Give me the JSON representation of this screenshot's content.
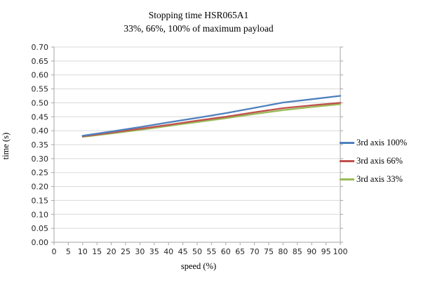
{
  "chart_data": {
    "type": "line",
    "title": "Stopping time HSR065A1",
    "subtitle": "33%, 66%, 100% of maximum payload",
    "xlabel": "speed (%)",
    "ylabel": "time (s)",
    "xlim": [
      0,
      100
    ],
    "ylim": [
      0,
      0.7
    ],
    "grid": true,
    "legend_position": "right",
    "x_tick_labels": [
      "0",
      "5",
      "10",
      "15",
      "20",
      "25",
      "30",
      "35",
      "40",
      "45",
      "50",
      "55",
      "60",
      "65",
      "70",
      "75",
      "80",
      "85",
      "90",
      "95",
      "100"
    ],
    "y_tick_labels": [
      "0.00",
      "0.05",
      "0.10",
      "0.15",
      "0.20",
      "0.25",
      "0.30",
      "0.35",
      "0.40",
      "0.45",
      "0.50",
      "0.55",
      "0.60",
      "0.65",
      "0.70"
    ],
    "x": [
      10,
      20,
      30,
      40,
      50,
      60,
      70,
      80,
      90,
      100
    ],
    "series": [
      {
        "name": "3rd axis 100%",
        "color": "#4F81BD",
        "values": [
          0.382,
          0.397,
          0.413,
          0.43,
          0.446,
          0.463,
          0.482,
          0.501,
          0.513,
          0.525
        ]
      },
      {
        "name": "3rd axis 66%",
        "color": "#C0504D",
        "values": [
          0.38,
          0.393,
          0.407,
          0.421,
          0.436,
          0.45,
          0.466,
          0.481,
          0.491,
          0.5
        ]
      },
      {
        "name": "3rd axis 33%",
        "color": "#9BBB59",
        "values": [
          0.378,
          0.39,
          0.403,
          0.417,
          0.431,
          0.445,
          0.46,
          0.474,
          0.485,
          0.495
        ]
      }
    ],
    "colors": {
      "gridline": "#D9D9D9",
      "axis": "#A6A6A6",
      "tick_text": "#262626"
    }
  }
}
